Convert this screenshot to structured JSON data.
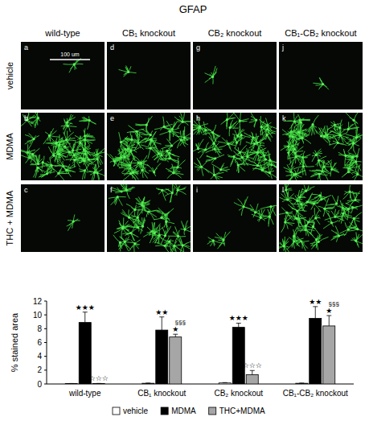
{
  "figure": {
    "title": "GFAP",
    "columns": [
      "wild-type",
      "CB₁ knockout",
      "CB₂ knockout",
      "CB₁-CB₂ knockout"
    ],
    "rows": [
      "vehicle",
      "MDMA",
      "THC + MDMA"
    ],
    "letters": [
      [
        "a",
        "d",
        "g",
        "j"
      ],
      [
        "b",
        "e",
        "h",
        "k"
      ],
      [
        "c",
        "f",
        "i",
        "l"
      ]
    ],
    "scale_bar": "100 um"
  },
  "chart_data": {
    "type": "bar",
    "y_label": "% stained area",
    "categories": [
      "wild-type",
      "CB₁ knockout",
      "CB₂ knockout",
      "CB₁-CB₂ knockout"
    ],
    "series": [
      {
        "name": "vehicle",
        "color": "#ffffff",
        "values": [
          0.05,
          0.1,
          0.15,
          0.1
        ],
        "errors": [
          0.02,
          0.03,
          0.05,
          0.03
        ]
      },
      {
        "name": "MDMA",
        "color": "#000000",
        "values": [
          8.9,
          7.8,
          8.2,
          9.5
        ],
        "errors": [
          1.5,
          1.9,
          0.6,
          1.7
        ],
        "annotations": [
          [
            "★★★"
          ],
          [
            "★★"
          ],
          [
            "★★★"
          ],
          [
            "★★"
          ]
        ]
      },
      {
        "name": "THC+MDMA",
        "color": "#a6a6a6",
        "values": [
          0.05,
          6.8,
          1.35,
          8.4
        ],
        "errors": [
          0.03,
          0.4,
          0.6,
          1.5
        ],
        "annotations": [
          [
            "☆☆☆"
          ],
          [
            "§§§",
            "★"
          ],
          [
            "☆☆☆"
          ],
          [
            "§§§",
            "★"
          ]
        ]
      }
    ],
    "ylim": [
      0,
      12
    ],
    "yticks": [
      0,
      2,
      4,
      6,
      8,
      10,
      12
    ],
    "grid": false,
    "legend": "bottom"
  }
}
